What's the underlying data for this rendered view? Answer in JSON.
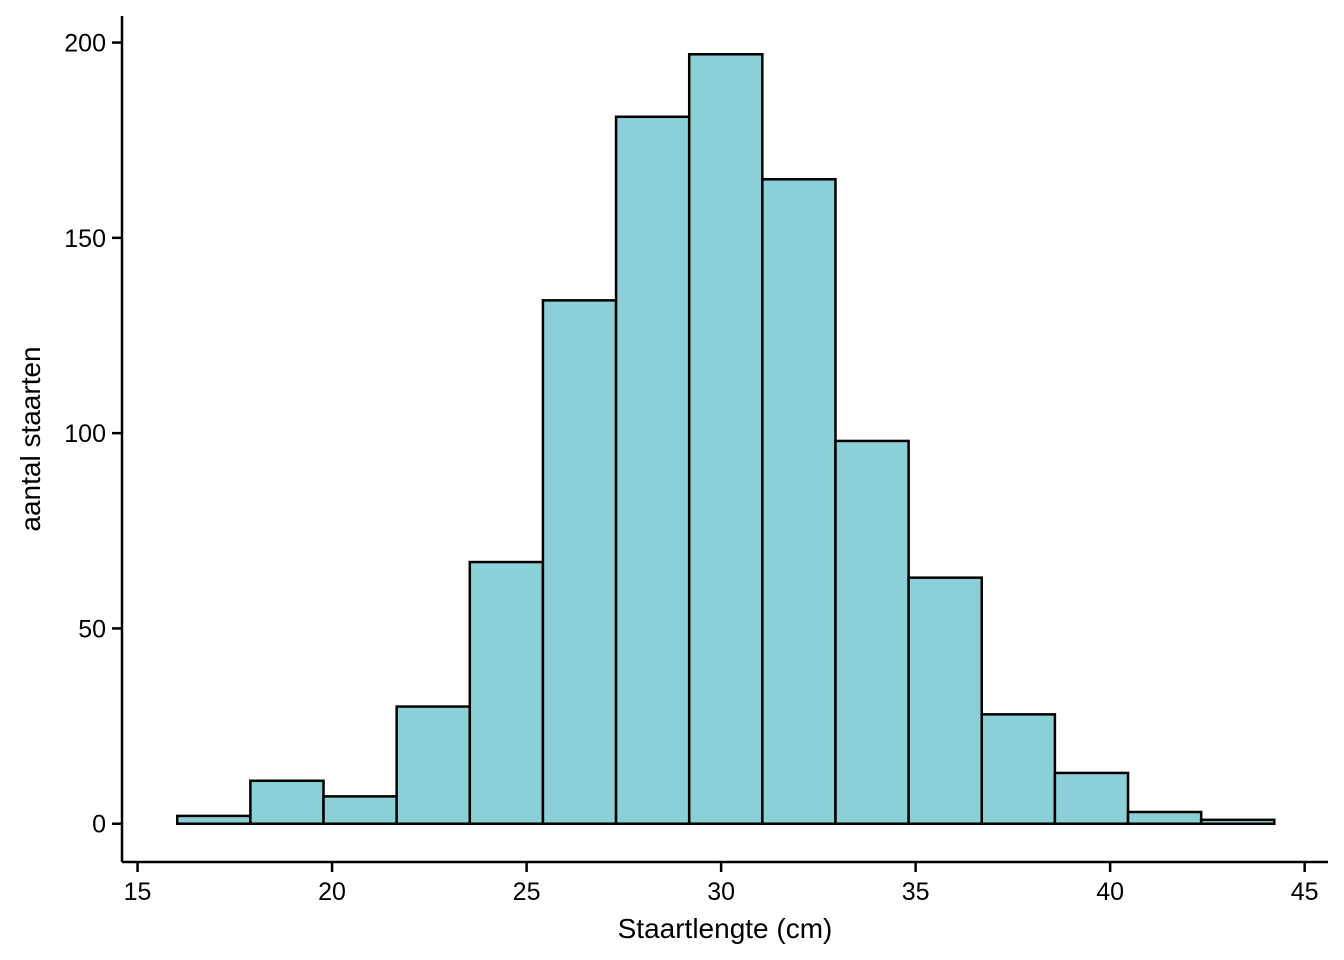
{
  "chart_data": {
    "type": "bar",
    "subtype": "histogram",
    "title": "",
    "xlabel": "Staartlengte (cm)",
    "ylabel": "aantal staarten",
    "xlim": [
      14.6,
      45.6
    ],
    "ylim": [
      -9.8,
      206.8
    ],
    "x_ticks": [
      15,
      20,
      25,
      30,
      35,
      40,
      45
    ],
    "y_ticks": [
      0,
      50,
      100,
      150,
      200
    ],
    "bin_edges": [
      16.02,
      17.9,
      19.78,
      21.66,
      23.54,
      25.42,
      27.3,
      29.18,
      31.06,
      32.94,
      34.82,
      36.7,
      38.58,
      40.46,
      42.34,
      44.22
    ],
    "values": [
      2,
      11,
      7,
      30,
      67,
      134,
      181,
      197,
      165,
      98,
      63,
      28,
      13,
      3,
      1
    ],
    "grid": false,
    "legend": "none",
    "colors": {
      "bar_fill": "#8BD0D6",
      "bar_stroke": "#000000",
      "axis": "#000000",
      "background": "#FFFFFF"
    }
  }
}
